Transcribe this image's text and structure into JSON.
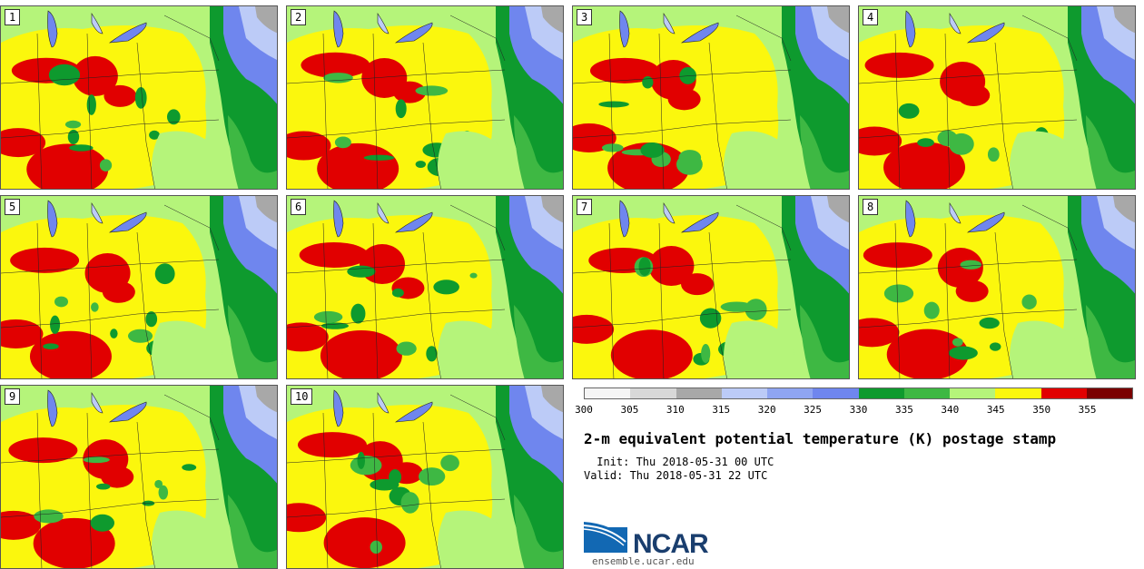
{
  "panels": [
    {
      "label": "1"
    },
    {
      "label": "2"
    },
    {
      "label": "3"
    },
    {
      "label": "4"
    },
    {
      "label": "5"
    },
    {
      "label": "6"
    },
    {
      "label": "7"
    },
    {
      "label": "8"
    },
    {
      "label": "9"
    },
    {
      "label": "10"
    }
  ],
  "colorbar": {
    "ticks": [
      "300",
      "305",
      "310",
      "315",
      "320",
      "325",
      "330",
      "335",
      "340",
      "345",
      "350",
      "355"
    ],
    "colors": [
      "#f5f5f5",
      "#d8d8d8",
      "#a8a8a8",
      "#bccbf7",
      "#8fa5f2",
      "#6f86ee",
      "#0e9a2e",
      "#3eb843",
      "#b5f47a",
      "#fbf70d",
      "#e10000",
      "#7a0000"
    ]
  },
  "title": "2-m equivalent potential temperature (K) postage stamp",
  "init": " Init: Thu 2018-05-31 00 UTC",
  "valid": "Valid: Thu 2018-05-31 22 UTC",
  "logo": {
    "name": "NCAR",
    "url": "ensemble.ucar.edu"
  }
}
